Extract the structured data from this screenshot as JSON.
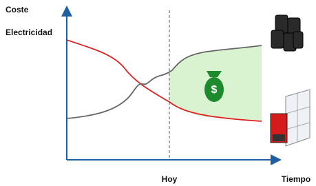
{
  "axes": {
    "y_label": [
      "Coste",
      "Electricidad"
    ],
    "marker_label": "Hoy",
    "x_label": "Tiempo"
  }
}
